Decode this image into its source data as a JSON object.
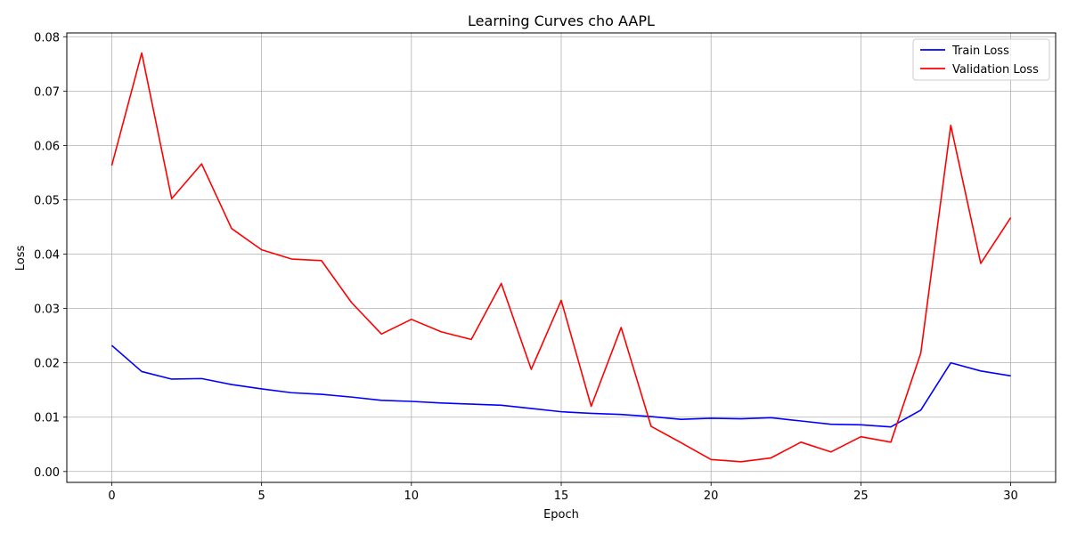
{
  "chart_data": {
    "type": "line",
    "title": "Learning Curves cho AAPL",
    "xlabel": "Epoch",
    "ylabel": "Loss",
    "x": [
      0,
      1,
      2,
      3,
      4,
      5,
      6,
      7,
      8,
      9,
      10,
      11,
      12,
      13,
      14,
      15,
      16,
      17,
      18,
      19,
      20,
      21,
      22,
      23,
      24,
      25,
      26,
      27,
      28,
      29,
      30
    ],
    "xlim": [
      -1.5,
      31.5
    ],
    "ylim": [
      -0.002,
      0.0807
    ],
    "xticks": [
      0,
      5,
      10,
      15,
      20,
      25,
      30
    ],
    "xtick_labels": [
      "0",
      "5",
      "10",
      "15",
      "20",
      "25",
      "30"
    ],
    "yticks": [
      0,
      0.01,
      0.02,
      0.03,
      0.04,
      0.05,
      0.06,
      0.07,
      0.08
    ],
    "ytick_labels": [
      "0.00",
      "0.01",
      "0.02",
      "0.03",
      "0.04",
      "0.05",
      "0.06",
      "0.07",
      "0.08"
    ],
    "grid": true,
    "legend_position": "top-right",
    "series": [
      {
        "name": "Train Loss",
        "color": "#0000ff",
        "values": [
          0.0232,
          0.0184,
          0.017,
          0.0171,
          0.016,
          0.0152,
          0.0145,
          0.0142,
          0.0137,
          0.0131,
          0.0129,
          0.0126,
          0.0124,
          0.0122,
          0.0116,
          0.011,
          0.0107,
          0.0105,
          0.0101,
          0.0096,
          0.0098,
          0.0097,
          0.0099,
          0.0093,
          0.0087,
          0.0086,
          0.0082,
          0.0113,
          0.02,
          0.0185,
          0.0176
        ]
      },
      {
        "name": "Validation Loss",
        "color": "#ff0000",
        "values": [
          0.0563,
          0.077,
          0.0502,
          0.0566,
          0.0447,
          0.0408,
          0.0391,
          0.0388,
          0.0311,
          0.0253,
          0.028,
          0.0257,
          0.0243,
          0.0346,
          0.0188,
          0.0315,
          0.012,
          0.0265,
          0.0083,
          0.0053,
          0.0022,
          0.0018,
          0.0025,
          0.0054,
          0.0036,
          0.0064,
          0.0054,
          0.0218,
          0.0637,
          0.0383,
          0.0467
        ]
      }
    ]
  }
}
